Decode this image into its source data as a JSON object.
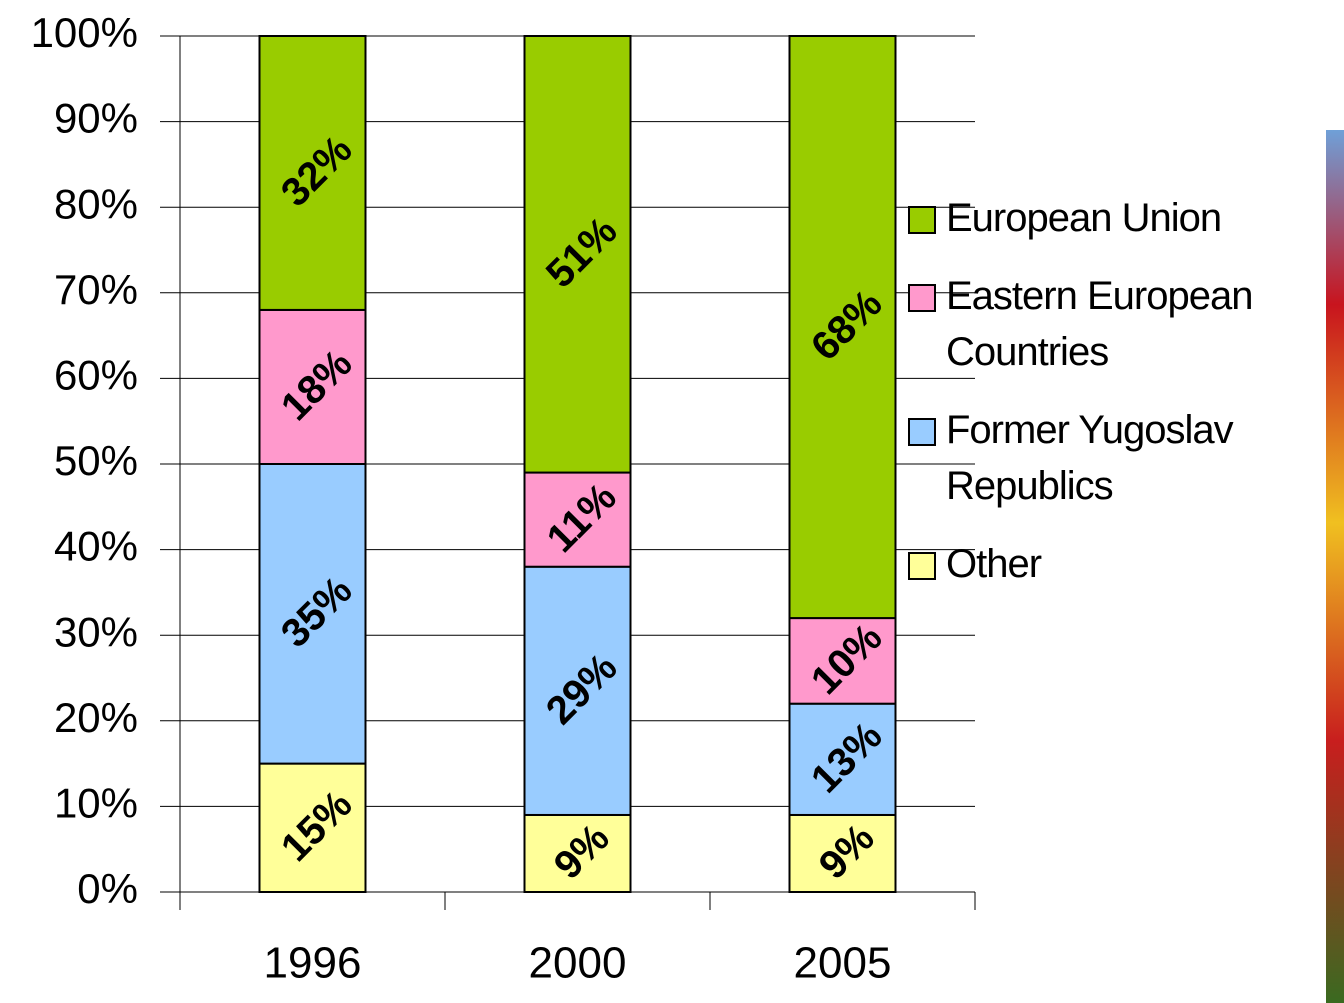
{
  "chart_data": {
    "type": "stacked_bar",
    "categories": [
      "1996",
      "2000",
      "2005"
    ],
    "series": [
      {
        "name": "European Union",
        "color": "#99cc00",
        "values": [
          32,
          51,
          68
        ],
        "value_labels": [
          "32%",
          "51%",
          "68%"
        ]
      },
      {
        "name": "Eastern European Countries",
        "color": "#ff99cc",
        "values": [
          18,
          11,
          10
        ],
        "value_labels": [
          "18%",
          "11%",
          "10%"
        ]
      },
      {
        "name": "Former Yugoslav Republics",
        "color": "#99ccff",
        "values": [
          35,
          29,
          13
        ],
        "value_labels": [
          "35%",
          "29%",
          "13%"
        ]
      },
      {
        "name": "Other",
        "color": "#ffff99",
        "values": [
          15,
          9,
          9
        ],
        "value_labels": [
          "15%",
          "9%",
          "9%"
        ]
      }
    ],
    "ylim": [
      0,
      100
    ],
    "yticks": [
      {
        "value": 0,
        "label": "0%"
      },
      {
        "value": 10,
        "label": "10%"
      },
      {
        "value": 20,
        "label": "20%"
      },
      {
        "value": 30,
        "label": "30%"
      },
      {
        "value": 40,
        "label": "40%"
      },
      {
        "value": 50,
        "label": "50%"
      },
      {
        "value": 60,
        "label": "60%"
      },
      {
        "value": 70,
        "label": "70%"
      },
      {
        "value": 80,
        "label": "80%"
      },
      {
        "value": 90,
        "label": "90%"
      },
      {
        "value": 100,
        "label": "100%"
      }
    ],
    "grid": true,
    "legend": "right"
  }
}
